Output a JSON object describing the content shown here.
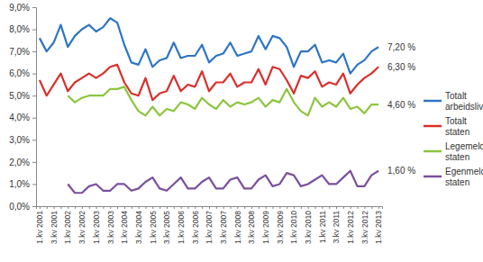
{
  "chart_data": {
    "type": "line",
    "categories": [
      "1.kv 2001",
      null,
      "3.kv 2001",
      null,
      "1.kv 2002",
      null,
      "3.kv 2002",
      null,
      "1.kv 2003",
      null,
      "3.kv 2003",
      null,
      "1.kv 2004",
      null,
      "3.kv 2004",
      null,
      "1.kv 2005",
      null,
      "3.kv 2005",
      null,
      "1.kv 2006",
      null,
      "3.kv 2006",
      null,
      "1.kv 2007",
      null,
      "3.kv 2007",
      null,
      "1.kv 2008",
      null,
      "3.kv 2008",
      null,
      "1.kv 2009",
      null,
      "3.kv 2009",
      null,
      "1.kv 2010",
      null,
      "3.kv 2010",
      null,
      "1.kv 2011",
      null,
      "3.kv 2011",
      null,
      "1.kv 2012",
      null,
      "3.kv 2012",
      null,
      "1.kv 2013"
    ],
    "series": [
      {
        "name": "Totalt arbeidslivet",
        "color": "#2e75c6",
        "values": [
          7.6,
          7.0,
          7.4,
          8.2,
          7.2,
          7.7,
          8.0,
          8.2,
          7.9,
          8.1,
          8.5,
          8.3,
          7.3,
          6.5,
          6.4,
          7.1,
          6.3,
          6.6,
          6.7,
          7.4,
          6.7,
          6.8,
          6.8,
          7.3,
          6.5,
          6.8,
          6.9,
          7.4,
          6.8,
          6.9,
          7.0,
          7.7,
          7.1,
          7.7,
          7.6,
          7.2,
          6.3,
          7.0,
          7.0,
          7.3,
          6.5,
          6.6,
          6.5,
          6.9,
          6.0,
          6.4,
          6.6,
          7.0,
          7.2
        ]
      },
      {
        "name": "Totalt staten",
        "color": "#d9302a",
        "values": [
          5.7,
          5.0,
          5.5,
          6.0,
          5.2,
          5.6,
          5.8,
          6.0,
          5.8,
          6.0,
          6.3,
          6.4,
          5.6,
          5.1,
          5.0,
          5.8,
          4.8,
          5.1,
          5.2,
          5.9,
          5.2,
          5.5,
          5.4,
          6.1,
          5.2,
          5.6,
          5.6,
          6.0,
          5.4,
          5.6,
          5.6,
          6.2,
          5.5,
          6.3,
          6.2,
          5.7,
          5.1,
          5.9,
          5.8,
          6.1,
          5.4,
          5.6,
          5.5,
          6.0,
          5.1,
          5.5,
          5.8,
          6.0,
          6.3
        ]
      },
      {
        "name": "Legemeldte staten",
        "color": "#8cc63e",
        "values": [
          null,
          null,
          null,
          null,
          5.0,
          4.7,
          4.9,
          5.0,
          5.0,
          5.0,
          5.3,
          5.3,
          5.4,
          4.8,
          4.3,
          4.1,
          4.5,
          4.1,
          4.4,
          4.3,
          4.7,
          4.6,
          4.4,
          4.9,
          4.6,
          4.4,
          4.8,
          4.5,
          4.7,
          4.6,
          4.7,
          4.9,
          4.5,
          4.8,
          4.7,
          5.3,
          4.7,
          4.3,
          4.1,
          4.9,
          4.5,
          4.7,
          4.5,
          4.9,
          4.4,
          4.5,
          4.2,
          4.6,
          4.6
        ]
      },
      {
        "name": "Egenmeldte staten",
        "color": "#7b4f9e",
        "values": [
          null,
          null,
          null,
          null,
          1.0,
          0.6,
          0.6,
          0.9,
          1.0,
          0.7,
          0.7,
          1.0,
          1.0,
          0.7,
          0.8,
          1.1,
          1.3,
          0.8,
          0.7,
          1.0,
          1.3,
          0.8,
          0.8,
          1.1,
          1.3,
          0.8,
          0.8,
          1.2,
          1.3,
          0.8,
          0.8,
          1.2,
          1.4,
          0.9,
          1.0,
          1.5,
          1.4,
          0.9,
          1.0,
          1.2,
          1.4,
          1.0,
          1.0,
          1.3,
          1.6,
          0.9,
          0.9,
          1.4,
          1.6
        ]
      }
    ],
    "ylim": [
      0,
      9
    ],
    "yticks": [
      {
        "value": 0,
        "label": "0,0%"
      },
      {
        "value": 1,
        "label": "1,0%"
      },
      {
        "value": 2,
        "label": "2,0%"
      },
      {
        "value": 3,
        "label": "3,0%"
      },
      {
        "value": 4,
        "label": "4,0%"
      },
      {
        "value": 5,
        "label": "5,0%"
      },
      {
        "value": 6,
        "label": "6,0%"
      },
      {
        "value": 7,
        "label": "7,0%"
      },
      {
        "value": 8,
        "label": "8,0%"
      },
      {
        "value": 9,
        "label": "9,0%"
      }
    ],
    "annotations": [
      {
        "text": "7,20 %",
        "y": 7.2
      },
      {
        "text": "6,30 %",
        "y": 6.3
      },
      {
        "text": "4,60 %",
        "y": 4.6
      },
      {
        "text": "1,60 %",
        "y": 1.6
      }
    ],
    "grid": false,
    "legend": "right"
  }
}
